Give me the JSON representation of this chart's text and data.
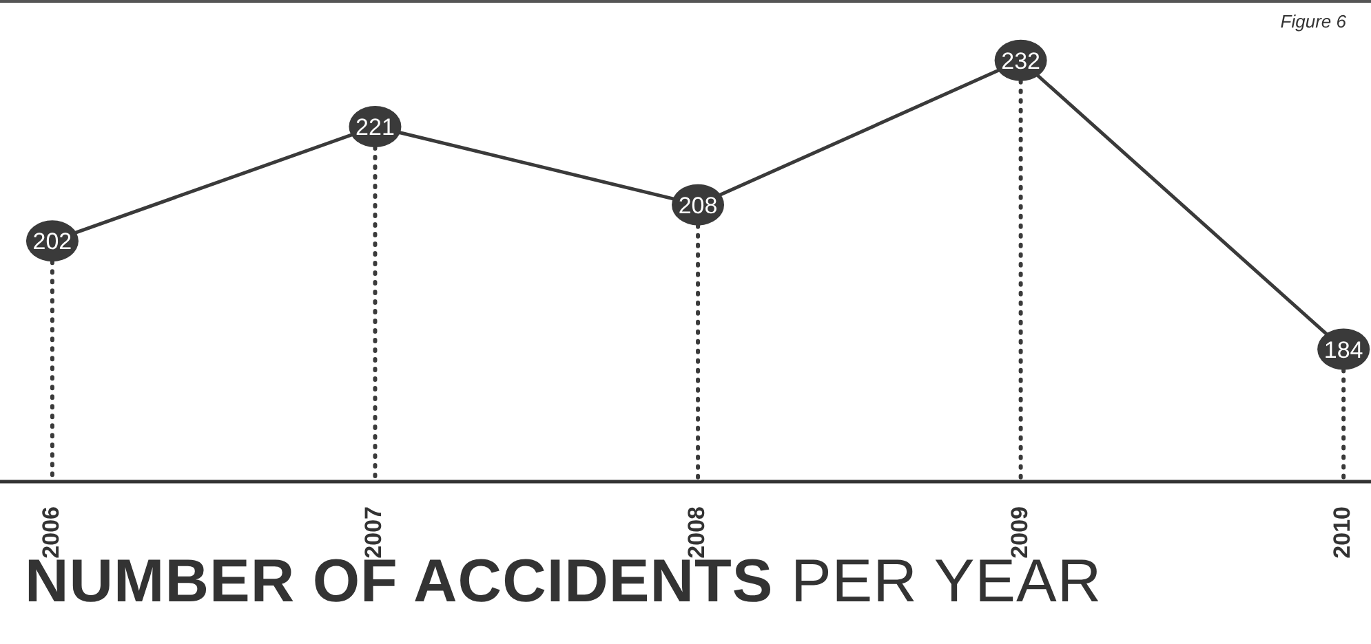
{
  "chart_data": {
    "type": "line",
    "title": "NUMBER OF ACCIDENTS",
    "subtitle": "PER YEAR",
    "annotations": [
      "Figure 6"
    ],
    "categories": [
      "2006",
      "2007",
      "2008",
      "2009",
      "2010"
    ],
    "series": [
      {
        "color": "#3a3a3a",
        "values": [
          202,
          221,
          208,
          232,
          184
        ]
      }
    ],
    "data_labels": true,
    "marker": "circle",
    "grid": "x"
  }
}
